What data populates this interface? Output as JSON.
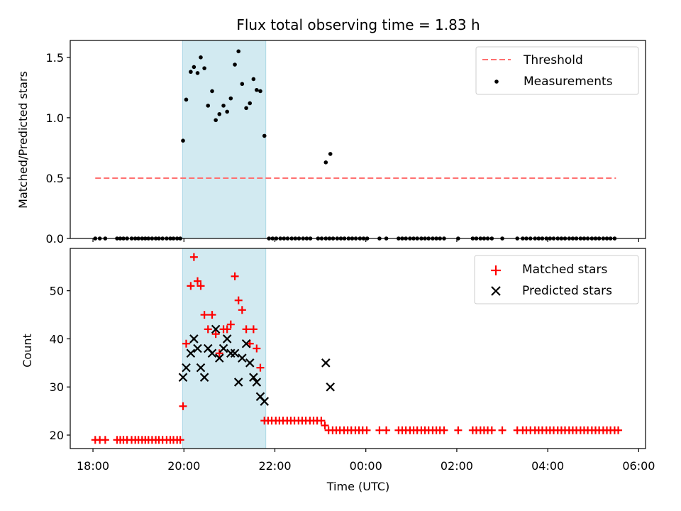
{
  "chart_data": {
    "title": "Flux total observing time = 1.83 h",
    "xlabel": "Time (UTC)",
    "x_unit": "hours since 18:00 UTC",
    "xlim": [
      -0.5,
      12.15
    ],
    "x_ticks": [
      {
        "value": 0,
        "label": "18:00"
      },
      {
        "value": 2,
        "label": "20:00"
      },
      {
        "value": 4,
        "label": "22:00"
      },
      {
        "value": 6,
        "label": "00:00"
      },
      {
        "value": 8,
        "label": "02:00"
      },
      {
        "value": 10,
        "label": "04:00"
      },
      {
        "value": 12,
        "label": "06:00"
      }
    ],
    "observing_window": {
      "start": 1.97,
      "end": 3.8,
      "color": "#add8e6"
    },
    "top_panel": {
      "type": "scatter",
      "ylabel": "Matched/Predicted stars",
      "ylim": [
        0,
        1.64
      ],
      "y_ticks": [
        {
          "value": 0,
          "label": "0.0"
        },
        {
          "value": 0.5,
          "label": "0.5"
        },
        {
          "value": 1.0,
          "label": "1.0"
        },
        {
          "value": 1.5,
          "label": "1.5"
        }
      ],
      "threshold": {
        "name": "Threshold",
        "y": 0.5,
        "x_range": [
          0.05,
          11.5
        ],
        "color": "#ff7070"
      },
      "measurements": {
        "name": "Measurements",
        "color": "#000000",
        "points": [
          [
            0.05,
            0
          ],
          [
            0.15,
            0
          ],
          [
            0.27,
            0
          ],
          [
            0.53,
            0
          ],
          [
            0.6,
            0
          ],
          [
            0.67,
            0
          ],
          [
            0.75,
            0
          ],
          [
            0.85,
            0
          ],
          [
            0.93,
            0
          ],
          [
            1.0,
            0
          ],
          [
            1.08,
            0
          ],
          [
            1.15,
            0
          ],
          [
            1.22,
            0
          ],
          [
            1.3,
            0
          ],
          [
            1.38,
            0
          ],
          [
            1.45,
            0
          ],
          [
            1.53,
            0
          ],
          [
            1.62,
            0
          ],
          [
            1.7,
            0
          ],
          [
            1.77,
            0
          ],
          [
            1.85,
            0
          ],
          [
            1.92,
            0
          ],
          [
            1.98,
            0.81
          ],
          [
            2.05,
            1.15
          ],
          [
            2.15,
            1.38
          ],
          [
            2.22,
            1.42
          ],
          [
            2.3,
            1.37
          ],
          [
            2.37,
            1.5
          ],
          [
            2.45,
            1.41
          ],
          [
            2.53,
            1.1
          ],
          [
            2.62,
            1.22
          ],
          [
            2.7,
            0.98
          ],
          [
            2.78,
            1.03
          ],
          [
            2.87,
            1.1
          ],
          [
            2.95,
            1.05
          ],
          [
            3.03,
            1.16
          ],
          [
            3.12,
            1.44
          ],
          [
            3.2,
            1.55
          ],
          [
            3.28,
            1.28
          ],
          [
            3.37,
            1.08
          ],
          [
            3.45,
            1.12
          ],
          [
            3.53,
            1.32
          ],
          [
            3.6,
            1.23
          ],
          [
            3.68,
            1.22
          ],
          [
            3.77,
            0.85
          ],
          [
            3.87,
            0
          ],
          [
            3.95,
            0
          ],
          [
            4.03,
            0
          ],
          [
            4.12,
            0
          ],
          [
            4.2,
            0
          ],
          [
            4.28,
            0
          ],
          [
            4.37,
            0
          ],
          [
            4.45,
            0
          ],
          [
            4.53,
            0
          ],
          [
            4.62,
            0
          ],
          [
            4.7,
            0
          ],
          [
            4.78,
            0
          ],
          [
            5.12,
            0.63
          ],
          [
            5.22,
            0.7
          ],
          [
            4.95,
            0
          ],
          [
            5.03,
            0
          ],
          [
            5.12,
            0
          ],
          [
            5.2,
            0
          ],
          [
            5.28,
            0
          ],
          [
            5.37,
            0
          ],
          [
            5.45,
            0
          ],
          [
            5.53,
            0
          ],
          [
            5.62,
            0
          ],
          [
            5.7,
            0
          ],
          [
            5.78,
            0
          ],
          [
            5.87,
            0
          ],
          [
            5.95,
            0
          ],
          [
            6.03,
            0
          ],
          [
            6.3,
            0
          ],
          [
            6.45,
            0
          ],
          [
            6.72,
            0
          ],
          [
            6.8,
            0
          ],
          [
            6.88,
            0
          ],
          [
            6.97,
            0
          ],
          [
            7.05,
            0
          ],
          [
            7.13,
            0
          ],
          [
            7.22,
            0
          ],
          [
            7.3,
            0
          ],
          [
            7.38,
            0
          ],
          [
            7.47,
            0
          ],
          [
            7.55,
            0
          ],
          [
            7.63,
            0
          ],
          [
            7.72,
            0
          ],
          [
            8.03,
            0
          ],
          [
            8.35,
            0
          ],
          [
            8.43,
            0
          ],
          [
            8.52,
            0
          ],
          [
            8.6,
            0
          ],
          [
            8.68,
            0
          ],
          [
            8.77,
            0
          ],
          [
            9.0,
            0
          ],
          [
            9.33,
            0
          ],
          [
            9.45,
            0
          ],
          [
            9.53,
            0
          ],
          [
            9.62,
            0
          ],
          [
            9.72,
            0
          ],
          [
            9.8,
            0
          ],
          [
            9.88,
            0
          ],
          [
            9.97,
            0
          ],
          [
            10.05,
            0
          ],
          [
            10.13,
            0
          ],
          [
            10.22,
            0
          ],
          [
            10.3,
            0
          ],
          [
            10.38,
            0
          ],
          [
            10.47,
            0
          ],
          [
            10.55,
            0
          ],
          [
            10.63,
            0
          ],
          [
            10.72,
            0
          ],
          [
            10.8,
            0
          ],
          [
            10.88,
            0
          ],
          [
            10.97,
            0
          ],
          [
            11.05,
            0
          ],
          [
            11.13,
            0
          ],
          [
            11.22,
            0
          ],
          [
            11.3,
            0
          ],
          [
            11.38,
            0
          ],
          [
            11.47,
            0
          ]
        ]
      },
      "legend": {
        "placement": "upper-right",
        "entries": [
          "Threshold",
          "Measurements"
        ]
      }
    },
    "bottom_panel": {
      "type": "scatter",
      "ylabel": "Count",
      "ylim": [
        17.2,
        58.8
      ],
      "y_ticks": [
        {
          "value": 20,
          "label": "20"
        },
        {
          "value": 30,
          "label": "30"
        },
        {
          "value": 40,
          "label": "40"
        },
        {
          "value": 50,
          "label": "50"
        }
      ],
      "series": [
        {
          "name": "Matched stars",
          "marker": "plus",
          "color": "#ff0000",
          "points": [
            [
              0.05,
              19
            ],
            [
              0.15,
              19
            ],
            [
              0.27,
              19
            ],
            [
              0.53,
              19
            ],
            [
              0.6,
              19
            ],
            [
              0.67,
              19
            ],
            [
              0.75,
              19
            ],
            [
              0.85,
              19
            ],
            [
              0.93,
              19
            ],
            [
              1.0,
              19
            ],
            [
              1.08,
              19
            ],
            [
              1.15,
              19
            ],
            [
              1.22,
              19
            ],
            [
              1.3,
              19
            ],
            [
              1.38,
              19
            ],
            [
              1.45,
              19
            ],
            [
              1.53,
              19
            ],
            [
              1.62,
              19
            ],
            [
              1.7,
              19
            ],
            [
              1.77,
              19
            ],
            [
              1.85,
              19
            ],
            [
              1.92,
              19
            ],
            [
              1.98,
              26
            ],
            [
              2.05,
              39
            ],
            [
              2.15,
              51
            ],
            [
              2.22,
              57
            ],
            [
              2.3,
              52
            ],
            [
              2.37,
              51
            ],
            [
              2.45,
              45
            ],
            [
              2.53,
              42
            ],
            [
              2.62,
              45
            ],
            [
              2.7,
              41
            ],
            [
              2.78,
              37
            ],
            [
              2.87,
              42
            ],
            [
              2.95,
              42
            ],
            [
              3.03,
              43
            ],
            [
              3.12,
              53
            ],
            [
              3.2,
              48
            ],
            [
              3.28,
              46
            ],
            [
              3.37,
              42
            ],
            [
              3.45,
              39
            ],
            [
              3.53,
              42
            ],
            [
              3.6,
              38
            ],
            [
              3.68,
              34
            ],
            [
              3.77,
              23
            ],
            [
              3.85,
              23
            ],
            [
              3.93,
              23
            ],
            [
              4.02,
              23
            ],
            [
              4.1,
              23
            ],
            [
              4.18,
              23
            ],
            [
              4.27,
              23
            ],
            [
              4.35,
              23
            ],
            [
              4.43,
              23
            ],
            [
              4.52,
              23
            ],
            [
              4.6,
              23
            ],
            [
              4.68,
              23
            ],
            [
              4.77,
              23
            ],
            [
              4.85,
              23
            ],
            [
              4.93,
              23
            ],
            [
              5.02,
              23
            ],
            [
              5.1,
              22
            ],
            [
              5.18,
              21
            ],
            [
              5.27,
              21
            ],
            [
              5.35,
              21
            ],
            [
              5.43,
              21
            ],
            [
              5.52,
              21
            ],
            [
              5.6,
              21
            ],
            [
              5.68,
              21
            ],
            [
              5.77,
              21
            ],
            [
              5.85,
              21
            ],
            [
              5.93,
              21
            ],
            [
              6.02,
              21
            ],
            [
              6.3,
              21
            ],
            [
              6.45,
              21
            ],
            [
              6.72,
              21
            ],
            [
              6.8,
              21
            ],
            [
              6.88,
              21
            ],
            [
              6.97,
              21
            ],
            [
              7.05,
              21
            ],
            [
              7.13,
              21
            ],
            [
              7.22,
              21
            ],
            [
              7.3,
              21
            ],
            [
              7.38,
              21
            ],
            [
              7.47,
              21
            ],
            [
              7.55,
              21
            ],
            [
              7.63,
              21
            ],
            [
              7.72,
              21
            ],
            [
              8.03,
              21
            ],
            [
              8.35,
              21
            ],
            [
              8.43,
              21
            ],
            [
              8.52,
              21
            ],
            [
              8.6,
              21
            ],
            [
              8.68,
              21
            ],
            [
              8.77,
              21
            ],
            [
              9.0,
              21
            ],
            [
              9.33,
              21
            ],
            [
              9.45,
              21
            ],
            [
              9.53,
              21
            ],
            [
              9.62,
              21
            ],
            [
              9.72,
              21
            ],
            [
              9.8,
              21
            ],
            [
              9.88,
              21
            ],
            [
              9.97,
              21
            ],
            [
              10.05,
              21
            ],
            [
              10.13,
              21
            ],
            [
              10.22,
              21
            ],
            [
              10.3,
              21
            ],
            [
              10.38,
              21
            ],
            [
              10.47,
              21
            ],
            [
              10.55,
              21
            ],
            [
              10.63,
              21
            ],
            [
              10.72,
              21
            ],
            [
              10.8,
              21
            ],
            [
              10.88,
              21
            ],
            [
              10.97,
              21
            ],
            [
              11.05,
              21
            ],
            [
              11.13,
              21
            ],
            [
              11.22,
              21
            ],
            [
              11.3,
              21
            ],
            [
              11.38,
              21
            ],
            [
              11.47,
              21
            ],
            [
              11.55,
              21
            ]
          ]
        },
        {
          "name": "Predicted stars",
          "marker": "x",
          "color": "#000000",
          "points": [
            [
              1.98,
              32
            ],
            [
              2.05,
              34
            ],
            [
              2.15,
              37
            ],
            [
              2.22,
              40
            ],
            [
              2.3,
              38
            ],
            [
              2.37,
              34
            ],
            [
              2.45,
              32
            ],
            [
              2.53,
              38
            ],
            [
              2.62,
              37
            ],
            [
              2.7,
              42
            ],
            [
              2.78,
              36
            ],
            [
              2.87,
              38
            ],
            [
              2.95,
              40
            ],
            [
              3.03,
              37
            ],
            [
              3.12,
              37
            ],
            [
              3.2,
              31
            ],
            [
              3.28,
              36
            ],
            [
              3.37,
              39
            ],
            [
              3.45,
              35
            ],
            [
              3.53,
              32
            ],
            [
              3.6,
              31
            ],
            [
              3.68,
              28
            ],
            [
              3.77,
              27
            ],
            [
              5.12,
              35
            ],
            [
              5.22,
              30
            ]
          ]
        }
      ],
      "legend": {
        "placement": "upper-right",
        "entries": [
          "Matched stars",
          "Predicted stars"
        ]
      }
    }
  }
}
